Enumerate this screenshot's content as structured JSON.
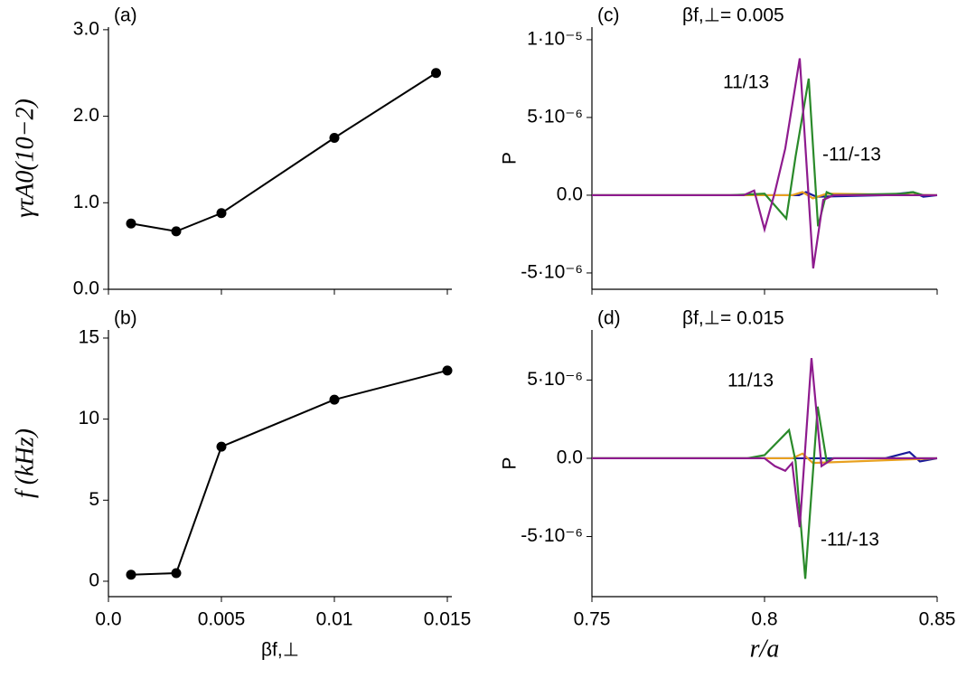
{
  "chart_data": [
    {
      "type": "line",
      "annotation": "(a)",
      "y_label": "γτA0(10−2)",
      "markers": true,
      "xlim": [
        0,
        0.0152
      ],
      "xticks": [
        0,
        0.005,
        0.01,
        0.015
      ],
      "ylim": [
        0,
        3.03
      ],
      "yticks": [
        {
          "value": 0,
          "label": "0.0"
        },
        {
          "value": 1,
          "label": "1.0"
        },
        {
          "value": 2,
          "label": "2.0"
        },
        {
          "value": 3,
          "label": "3.0"
        }
      ],
      "series": [
        {
          "color": "#000000",
          "x": [
            0.001,
            0.003,
            0.005,
            0.01,
            0.0145
          ],
          "values": [
            0.76,
            0.67,
            0.88,
            1.75,
            2.5
          ]
        }
      ]
    },
    {
      "type": "line",
      "annotation": "(b)",
      "y_label": "f (kHz)",
      "x_label": "βf,⊥",
      "markers": true,
      "xlim": [
        0,
        0.0152
      ],
      "xticks": [
        {
          "value": 0,
          "label": "0.0"
        },
        0.005,
        0.01,
        0.015
      ],
      "ylim": [
        -0.95,
        15.5
      ],
      "yticks": [
        0,
        5,
        10,
        15
      ],
      "series": [
        {
          "color": "#000000",
          "x": [
            0.001,
            0.003,
            0.005,
            0.01,
            0.015
          ],
          "values": [
            0.4,
            0.5,
            8.3,
            11.2,
            13.0
          ]
        }
      ]
    },
    {
      "type": "line",
      "annotation": "(c)",
      "subtitle": "βf,⊥= 0.005",
      "y_label": "P",
      "markers": false,
      "xlim": [
        0.75,
        0.85
      ],
      "xticks": [
        0.75,
        0.8,
        0.85
      ],
      "ylim": [
        -6.05e-06,
        1.081e-05
      ],
      "yticks": [
        {
          "value": 1e-05,
          "label": "1·10⁻⁵"
        },
        {
          "value": 5e-06,
          "label": "5·10⁻⁶"
        },
        {
          "value": 0,
          "label": "0.0"
        },
        {
          "value": -5e-06,
          "label": "-5·10⁻⁶"
        }
      ],
      "series": [
        {
          "color": "#1a1a9a",
          "x": [
            0.75,
            0.81,
            0.812,
            0.815,
            0.835,
            0.843,
            0.846,
            0.85
          ],
          "values": [
            0,
            0,
            2e-07,
            -1e-07,
            0,
            2e-07,
            -1e-07,
            0
          ]
        },
        {
          "color": "#e8a020",
          "x": [
            0.75,
            0.808,
            0.811,
            0.814,
            0.818,
            0.85
          ],
          "values": [
            0,
            0,
            2e-07,
            -2e-07,
            1e-07,
            0
          ]
        },
        {
          "name": "-11/-13",
          "color": "#2a8a2a",
          "x": [
            0.75,
            0.79,
            0.8,
            0.8063,
            0.809,
            0.8128,
            0.8155,
            0.818,
            0.82,
            0.84,
            0.843,
            0.846,
            0.85
          ],
          "values": [
            0,
            0,
            1e-07,
            -1.5e-06,
            2.5e-06,
            7.5e-06,
            -2e-06,
            2e-07,
            0,
            1e-07,
            2e-07,
            0,
            0
          ]
        },
        {
          "name": "11/13",
          "color": "#8e1b8e",
          "x": [
            0.75,
            0.794,
            0.797,
            0.8,
            0.803,
            0.806,
            0.8102,
            0.8141,
            0.817,
            0.82,
            0.85
          ],
          "values": [
            0,
            0,
            3e-07,
            -2.2e-06,
            2e-07,
            3e-06,
            8.8e-06,
            -4.7e-06,
            -3e-07,
            0,
            0
          ]
        }
      ]
    },
    {
      "type": "line",
      "annotation": "(d)",
      "subtitle": "βf,⊥= 0.015",
      "y_label": "P",
      "x_label": "r/a",
      "markers": false,
      "xlim": [
        0.75,
        0.85
      ],
      "xticks": [
        0.75,
        0.8,
        0.85
      ],
      "ylim": [
        -8.84e-06,
        8.2e-06
      ],
      "yticks": [
        {
          "value": 5e-06,
          "label": "5·10⁻⁶"
        },
        {
          "value": 0,
          "label": "0.0"
        },
        {
          "value": -5e-06,
          "label": "-5·10⁻⁶"
        }
      ],
      "series": [
        {
          "color": "#1a1a9a",
          "x": [
            0.75,
            0.835,
            0.842,
            0.845,
            0.85
          ],
          "values": [
            0,
            0,
            4e-07,
            -2e-07,
            0
          ]
        },
        {
          "color": "#e8a020",
          "x": [
            0.75,
            0.808,
            0.811,
            0.814,
            0.85
          ],
          "values": [
            0,
            0,
            3e-07,
            -3e-07,
            0
          ]
        },
        {
          "name": "-11/-13",
          "color": "#2a8a2a",
          "x": [
            0.75,
            0.795,
            0.8,
            0.8071,
            0.809,
            0.8118,
            0.8154,
            0.818,
            0.82,
            0.85
          ],
          "values": [
            0,
            0,
            2e-07,
            1.8e-06,
            -2e-07,
            -7.7e-06,
            3.3e-06,
            -2e-07,
            0,
            0
          ]
        },
        {
          "name": "11/13",
          "color": "#8e1b8e",
          "x": [
            0.75,
            0.8,
            0.803,
            0.806,
            0.808,
            0.8102,
            0.8136,
            0.8165,
            0.82,
            0.85
          ],
          "values": [
            0,
            0,
            -5e-07,
            -8e-07,
            -3e-07,
            -4.4e-06,
            6.4e-06,
            -5e-07,
            0,
            0
          ]
        }
      ]
    }
  ]
}
